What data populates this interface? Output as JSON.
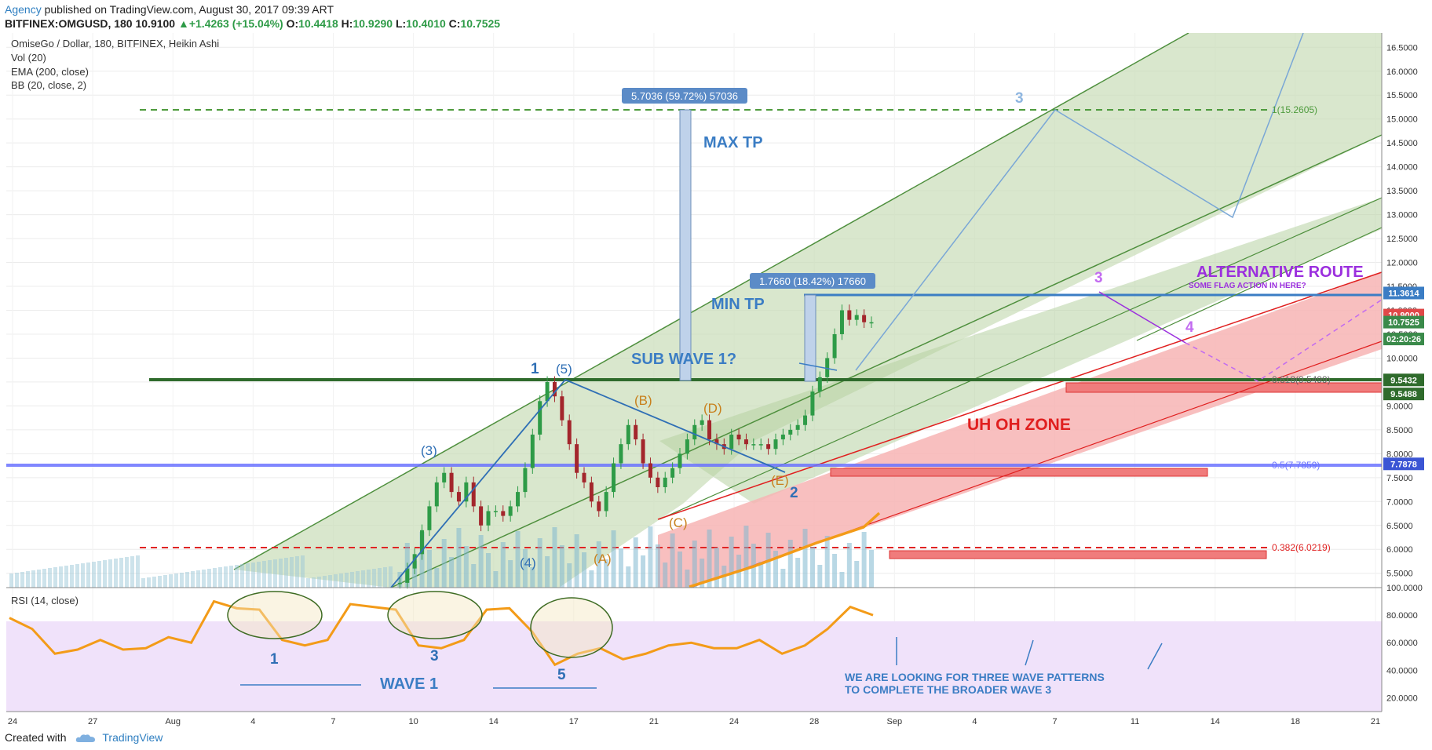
{
  "header": {
    "agency": "Agency",
    "published": "published on TradingView.com, August 30, 2017 09:39 ART",
    "ticker": "BITFINEX:OMGUSD, 180",
    "last": "10.9100",
    "change": "▲+1.4263 (+15.04%)",
    "o_label": "O:",
    "o": "10.4418",
    "h_label": "H:",
    "h": "10.9290",
    "l_label": "L:",
    "l": "10.4010",
    "c_label": "C:",
    "c": "10.7525"
  },
  "footer": {
    "created": "Created with",
    "brand": "TradingView"
  },
  "legend": [
    "OmiseGo / Dollar, 180, BITFINEX, Heikin Ashi",
    "Vol (20)",
    "EMA (200, close)",
    "BB (20, close, 2)"
  ],
  "rsi_label": "RSI (14, close)",
  "colors": {
    "up": "#2e9b47",
    "down": "#a3262c",
    "green_fill": "#c9ddb8",
    "red_fill": "#f7b4b4",
    "blue_line": "#4f86c9",
    "purple": "#9b2fde",
    "orange": "#f39b18",
    "rsi_band": "#f0e2fa",
    "brand_blue": "#2f7fc1"
  },
  "annotations": {
    "max_tp": "MAX TP",
    "min_tp": "MIN TP",
    "sub_wave": "SUB WAVE 1?",
    "uh_oh": "UH OH ZONE",
    "alt_route": "ALTERNATIVE ROUTE",
    "flag": "SOME FLAG ACTION IN HERE?",
    "box_max": "5.7036 (59.72%) 57036",
    "box_min": "1.7660 (18.42%) 17660",
    "wave1": "WAVE 1",
    "looking1": "WE ARE LOOKING FOR THREE WAVE PATTERNS",
    "looking2": "TO COMPLETE THE BROADER WAVE 3",
    "fib_1": "1(15.2605)",
    "fib_618": "0.618(9.5499)",
    "fib_05": "0.5(7.7859)",
    "fib_382": "0.382(6.0219)",
    "wave_labels": {
      "w1": "1",
      "w2": "2",
      "w3_blue": "3",
      "w3_purple": "3",
      "w4": "4",
      "sub3": "(3)",
      "sub4": "(4)",
      "sub5": "(5)",
      "a": "(A)",
      "b": "(B)",
      "c": "(C)",
      "d": "(D)",
      "e": "(E)",
      "rsi1": "1",
      "rsi3": "3",
      "rsi5": "5"
    }
  },
  "chart_data": {
    "type": "line",
    "title": "OmiseGo / Dollar, 180, BITFINEX, Heikin Ashi",
    "x_dates": [
      "24",
      "27",
      "Aug",
      "4",
      "7",
      "10",
      "14",
      "17",
      "21",
      "24",
      "28",
      "Sep",
      "4",
      "7",
      "11",
      "14",
      "18",
      "21"
    ],
    "price_axis": {
      "ticks": [
        "16.5000",
        "16.0000",
        "15.5000",
        "15.0000",
        "14.5000",
        "14.0000",
        "13.5000",
        "13.0000",
        "12.5000",
        "12.0000",
        "11.5000",
        "11.0000",
        "10.5000",
        "10.0000",
        "9.5000",
        "9.0000",
        "8.5000",
        "8.0000",
        "7.5000",
        "7.0000",
        "6.5000",
        "6.0000",
        "5.5000"
      ],
      "ylim": [
        5.2,
        16.8
      ]
    },
    "rsi_axis": {
      "ticks": [
        "100.0000",
        "80.0000",
        "60.0000",
        "40.0000",
        "20.0000"
      ],
      "ylim": [
        10,
        100
      ],
      "band": [
        25,
        75
      ]
    },
    "price_tags": [
      {
        "label": "11.3614",
        "color": "#3b7dc4"
      },
      {
        "label": "10.9000",
        "color": "#e04848"
      },
      {
        "label": "10.7525",
        "color": "#3a8a4a"
      },
      {
        "label": "02:20:26",
        "color": "#3a8a4a"
      },
      {
        "label": "9.5432",
        "color": "#2f6b2c"
      },
      {
        "label": "9.5488",
        "color": "#2f6b2c"
      },
      {
        "label": "7.7878",
        "color": "#3b55d4"
      }
    ],
    "levels": {
      "max_tp": 15.2605,
      "fib_618": 9.5499,
      "fib_05": 7.7859,
      "fib_382": 6.0219,
      "min_tp": 11.3614,
      "entry": 9.5432
    },
    "series": [
      {
        "name": "Price (Heikin Ashi close)",
        "x": [
          0.4,
          0.8,
          1.2,
          1.6,
          2.0,
          2.4,
          2.8,
          3.2,
          3.6,
          4.0,
          4.4,
          4.8,
          5.2,
          5.6,
          6.0,
          6.4,
          6.8,
          7.2,
          7.6,
          8.0,
          8.4,
          8.8,
          9.2,
          9.6,
          10.0,
          10.4,
          10.8,
          11.2,
          11.6,
          12.0,
          12.4,
          12.8,
          13.2,
          13.6,
          14.0,
          14.4,
          14.8,
          15.2,
          15.6,
          16.0,
          16.4,
          16.8,
          17.2,
          17.6,
          18.0,
          18.4,
          18.8,
          19.2,
          19.6,
          20.0,
          20.4,
          20.8,
          21.2,
          21.6,
          22.0,
          22.4,
          22.8,
          23.2,
          23.6,
          24.0,
          24.4,
          24.8,
          25.2,
          25.6,
          26.0,
          26.4,
          26.8,
          27.2,
          27.6,
          28.0,
          28.4,
          28.8,
          29.2,
          29.6,
          30.0,
          30.4,
          30.8,
          31.2,
          31.6,
          32.0,
          32.4,
          32.8,
          33.2,
          33.6,
          34.0,
          34.4,
          34.8,
          35.2,
          35.6,
          36.0,
          36.4,
          36.8,
          37.2,
          37.6
        ],
        "values": [
          5.3,
          5.6,
          5.9,
          6.4,
          6.9,
          7.4,
          7.6,
          7.2,
          7.0,
          7.4,
          6.9,
          6.5,
          6.8,
          6.8,
          6.7,
          6.9,
          7.2,
          7.7,
          8.4,
          9.1,
          9.5,
          9.2,
          8.7,
          8.2,
          7.6,
          7.4,
          7.0,
          6.8,
          7.2,
          7.8,
          8.2,
          8.6,
          8.3,
          7.8,
          7.5,
          7.3,
          7.5,
          7.7,
          8.0,
          8.3,
          8.6,
          8.7,
          8.3,
          8.2,
          8.1,
          8.4,
          8.3,
          8.2,
          8.2,
          8.2,
          8.1,
          8.3,
          8.4,
          8.5,
          8.6,
          8.8,
          9.3,
          9.6,
          10.0,
          10.5,
          11.0,
          10.8,
          10.9,
          10.75,
          10.75,
          10.75,
          10.75,
          10.75,
          10.75,
          10.75,
          10.75,
          10.75,
          10.75,
          10.75,
          10.75,
          10.75,
          10.75,
          10.75,
          10.75,
          10.75,
          10.75,
          10.75,
          10.75,
          10.75,
          10.75,
          10.75,
          10.75,
          10.75,
          10.75,
          10.75,
          10.75,
          10.75,
          10.75,
          10.75
        ]
      },
      {
        "name": "RSI (14, close)",
        "x": [
          0,
          1,
          2,
          3,
          4,
          5,
          6,
          7,
          8,
          9,
          10,
          11,
          12,
          13,
          14,
          15,
          16,
          17,
          18,
          19,
          20,
          21,
          22,
          23,
          24,
          25,
          26,
          27,
          28,
          29,
          30,
          31,
          32,
          33,
          34,
          35,
          36,
          37,
          38
        ],
        "values": [
          78,
          70,
          52,
          55,
          62,
          55,
          56,
          64,
          60,
          90,
          85,
          84,
          62,
          58,
          62,
          88,
          86,
          84,
          58,
          56,
          62,
          84,
          85,
          68,
          44,
          52,
          56,
          48,
          52,
          58,
          60,
          56,
          56,
          62,
          52,
          58,
          70,
          86,
          80
        ]
      }
    ]
  }
}
